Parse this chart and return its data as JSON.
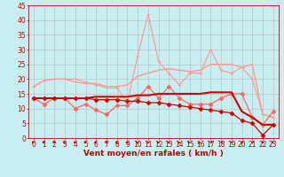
{
  "x": [
    0,
    1,
    2,
    3,
    4,
    5,
    6,
    7,
    8,
    9,
    10,
    11,
    12,
    13,
    14,
    15,
    16,
    17,
    18,
    19,
    20,
    21,
    22,
    23
  ],
  "series": [
    {
      "name": "line1_light_smooth",
      "color": "#ff9999",
      "linewidth": 1.0,
      "marker": null,
      "markersize": 0,
      "y": [
        17.5,
        19.5,
        20,
        20,
        19,
        18.5,
        18.5,
        17.5,
        17.5,
        18,
        21,
        22,
        23,
        23.5,
        23,
        22.5,
        23,
        25,
        25,
        25,
        24,
        25,
        8,
        7
      ]
    },
    {
      "name": "line2_light_peak",
      "color": "#ff9999",
      "linewidth": 0.8,
      "marker": "+",
      "markersize": 3,
      "y": [
        17.5,
        19.5,
        20,
        20,
        20,
        19,
        18,
        17,
        17,
        12,
        28,
        42,
        26,
        22,
        18,
        22,
        22,
        30,
        23,
        22,
        24,
        20,
        8,
        7
      ]
    },
    {
      "name": "line3_med",
      "color": "#ff6666",
      "linewidth": 0.9,
      "marker": "D",
      "markersize": 2.5,
      "y": [
        13.5,
        11.5,
        13.5,
        13.5,
        10,
        11.5,
        9.5,
        8,
        11,
        11,
        13.5,
        17.5,
        13.5,
        17.5,
        13.5,
        11.5,
        11.5,
        11.5,
        13.5,
        15,
        15,
        7,
        4.5,
        9
      ]
    },
    {
      "name": "line4_dark_flat",
      "color": "#cc0000",
      "linewidth": 1.5,
      "marker": null,
      "markersize": 0,
      "y": [
        13.5,
        13.5,
        13.5,
        13.5,
        13.5,
        13.5,
        14,
        14,
        14,
        14,
        14.5,
        14.5,
        15,
        15,
        15,
        15,
        15,
        15.5,
        15.5,
        15.5,
        9,
        7,
        4.5,
        4.5
      ]
    },
    {
      "name": "line5_dark_decay",
      "color": "#cc0000",
      "linewidth": 0.9,
      "marker": "D",
      "markersize": 2.5,
      "y": [
        13.5,
        13.5,
        13.5,
        13.5,
        13.5,
        13.5,
        13,
        13,
        13,
        12.5,
        12.5,
        12,
        12,
        11.5,
        11,
        10.5,
        10,
        9.5,
        9,
        8.5,
        6,
        5,
        1,
        4.5
      ]
    }
  ],
  "wind_angles": [
    60,
    60,
    60,
    60,
    60,
    60,
    60,
    70,
    70,
    80,
    90,
    90,
    100,
    110,
    120,
    130,
    140,
    150,
    150,
    150,
    150,
    150,
    90,
    60
  ],
  "wind_color": "#cc0000",
  "xlabel": "Vent moyen/en rafales ( km/h )",
  "xlim": [
    -0.5,
    23.5
  ],
  "ylim": [
    0,
    45
  ],
  "yticks": [
    0,
    5,
    10,
    15,
    20,
    25,
    30,
    35,
    40,
    45
  ],
  "xticks": [
    0,
    1,
    2,
    3,
    4,
    5,
    6,
    7,
    8,
    9,
    10,
    11,
    12,
    13,
    14,
    15,
    16,
    17,
    18,
    19,
    20,
    21,
    22,
    23
  ],
  "bg_color": "#c8eef0",
  "grid_color": "#b0b0b0",
  "axis_color": "#cc0000",
  "label_color": "#cc0000",
  "tick_color": "#cc0000",
  "label_fontsize": 6.5,
  "tick_fontsize": 5.5
}
